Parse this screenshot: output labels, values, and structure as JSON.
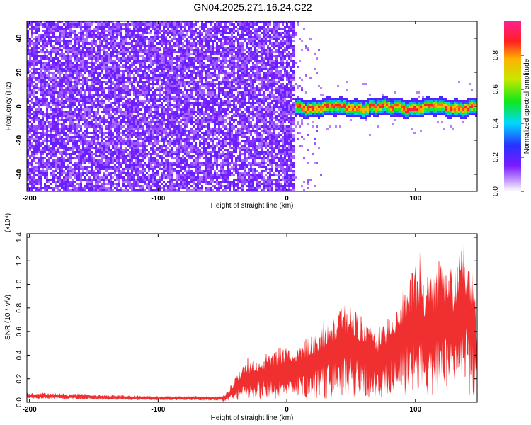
{
  "title": "GN04.2025.271.16.24.C22",
  "chart_data": [
    {
      "type": "heatmap",
      "title": "GN04.2025.271.16.24.C22",
      "xlabel": "Height of straight line (km)",
      "ylabel": "Frequency (Hz)",
      "xlim": [
        -202,
        148
      ],
      "ylim": [
        -50,
        50
      ],
      "xticks": [
        -200,
        -100,
        0,
        100
      ],
      "yticks": [
        -40,
        -20,
        0,
        20,
        40
      ],
      "colorbar": {
        "label": "Normalized spectral amplitude",
        "range": [
          0.0,
          1.0
        ],
        "ticks": [
          0.0,
          0.2,
          0.4,
          0.6,
          0.8
        ],
        "tick_labels": [
          "0.0",
          "0.2",
          "0.4",
          "0.6",
          "0.8"
        ]
      },
      "features": {
        "noise_region_x": [
          -202,
          5
        ],
        "signal_band_x": [
          5,
          148
        ],
        "signal_band_center_hz": 0
      }
    },
    {
      "type": "line",
      "xlabel": "Height of straight line (km)",
      "ylabel": "SNR (10 * v/v)",
      "y_multiplier": "(x10⁴)",
      "xlim": [
        -202,
        148
      ],
      "ylim": [
        0,
        1.43
      ],
      "xticks": [
        -200,
        -100,
        0,
        100
      ],
      "yticks": [
        0.0,
        0.2,
        0.4,
        0.6,
        0.8,
        1.0,
        1.2,
        1.4
      ],
      "ytick_labels": [
        "0.0",
        "0.2",
        "0.4",
        "0.6",
        "0.8",
        "1.0",
        "1.2",
        "1.4"
      ],
      "series": [
        {
          "color": "#f03030",
          "x": [
            -202,
            -190,
            -180,
            -170,
            -160,
            -150,
            -140,
            -130,
            -120,
            -110,
            -100,
            -90,
            -80,
            -70,
            -60,
            -50,
            -45,
            -40,
            -35,
            -30,
            -25,
            -20,
            -15,
            -10,
            -5,
            0,
            5,
            10,
            15,
            20,
            25,
            30,
            35,
            40,
            45,
            50,
            55,
            60,
            65,
            70,
            75,
            80,
            85,
            90,
            95,
            100,
            105,
            110,
            115,
            120,
            125,
            130,
            135,
            140,
            145,
            148
          ],
          "y": [
            0.08,
            0.08,
            0.075,
            0.07,
            0.07,
            0.065,
            0.06,
            0.06,
            0.055,
            0.055,
            0.05,
            0.05,
            0.05,
            0.05,
            0.05,
            0.05,
            0.1,
            0.2,
            0.28,
            0.33,
            0.35,
            0.38,
            0.4,
            0.42,
            0.44,
            0.44,
            0.42,
            0.48,
            0.52,
            0.55,
            0.6,
            0.64,
            0.68,
            0.72,
            0.8,
            0.78,
            0.72,
            0.66,
            0.62,
            0.6,
            0.62,
            0.72,
            0.82,
            0.92,
            1.0,
            1.1,
            1.05,
            1.0,
            1.08,
            1.2,
            1.15,
            1.05,
            1.25,
            1.3,
            1.05,
            0.6
          ]
        }
      ]
    }
  ]
}
